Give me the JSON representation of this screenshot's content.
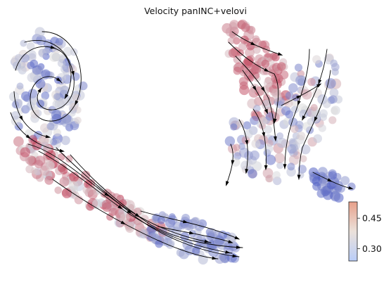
{
  "title": "Velocity panINC+velovi",
  "chart_data": {
    "type": "scatter",
    "title": "Velocity panINC+velovi",
    "xlabel": "",
    "ylabel": "",
    "grid": false,
    "frame": "none",
    "overlay": "velocity streamlines with arrowheads (black)",
    "colormap": {
      "name": "coolwarm",
      "low_color": "#3b4cc0",
      "mid_color": "#dddddd",
      "high_color": "#b40426",
      "vmin": 0.24,
      "vmax": 0.53,
      "ticks": [
        0.3,
        0.45
      ],
      "tick_labels": [
        "0.30",
        "0.45"
      ],
      "position": "bottom-right"
    },
    "clusters": [
      {
        "region": "left spiral",
        "value_range": [
          0.26,
          0.4
        ]
      },
      {
        "region": "central diagonal band",
        "value_range": [
          0.36,
          0.5
        ]
      },
      {
        "region": "lower-right tip",
        "value_range": [
          0.27,
          0.36
        ]
      },
      {
        "region": "top-right branch",
        "value_range": [
          0.4,
          0.49
        ]
      },
      {
        "region": "right cluster body",
        "value_range": [
          0.28,
          0.44
        ]
      },
      {
        "region": "right small spur",
        "value_range": [
          0.26,
          0.33
        ]
      }
    ]
  }
}
